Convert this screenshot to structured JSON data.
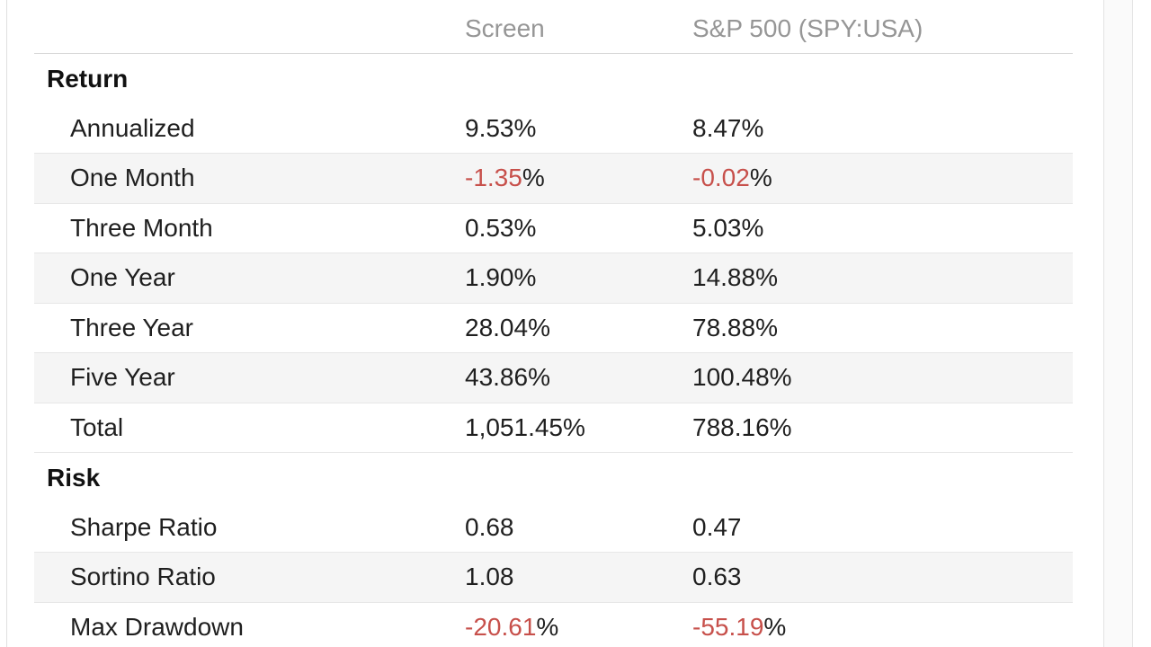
{
  "colors": {
    "negative_value": "#c7504b",
    "column_header_text": "#969696",
    "body_text": "#1f1f1f",
    "row_stripe": "#f5f5f5"
  },
  "table": {
    "columns": [
      {
        "label": ""
      },
      {
        "label": "Screen"
      },
      {
        "label": "S&P 500 (SPY:USA)"
      }
    ],
    "sections": [
      {
        "title": "Return",
        "rows": [
          {
            "label": "Annualized",
            "screen": {
              "num": "9.53",
              "suffix": "%",
              "negative": false
            },
            "benchmark": {
              "num": "8.47",
              "suffix": "%",
              "negative": false
            }
          },
          {
            "label": "One Month",
            "screen": {
              "num": "-1.35",
              "suffix": "%",
              "negative": true
            },
            "benchmark": {
              "num": "-0.02",
              "suffix": "%",
              "negative": true
            }
          },
          {
            "label": "Three Month",
            "screen": {
              "num": "0.53",
              "suffix": "%",
              "negative": false
            },
            "benchmark": {
              "num": "5.03",
              "suffix": "%",
              "negative": false
            }
          },
          {
            "label": "One Year",
            "screen": {
              "num": "1.90",
              "suffix": "%",
              "negative": false
            },
            "benchmark": {
              "num": "14.88",
              "suffix": "%",
              "negative": false
            }
          },
          {
            "label": "Three Year",
            "screen": {
              "num": "28.04",
              "suffix": "%",
              "negative": false
            },
            "benchmark": {
              "num": "78.88",
              "suffix": "%",
              "negative": false
            }
          },
          {
            "label": "Five Year",
            "screen": {
              "num": "43.86",
              "suffix": "%",
              "negative": false
            },
            "benchmark": {
              "num": "100.48",
              "suffix": "%",
              "negative": false
            }
          },
          {
            "label": "Total",
            "screen": {
              "num": "1,051.45",
              "suffix": "%",
              "negative": false
            },
            "benchmark": {
              "num": "788.16",
              "suffix": "%",
              "negative": false
            }
          }
        ]
      },
      {
        "title": "Risk",
        "rows": [
          {
            "label": "Sharpe Ratio",
            "screen": {
              "num": "0.68",
              "suffix": "",
              "negative": false
            },
            "benchmark": {
              "num": "0.47",
              "suffix": "",
              "negative": false
            }
          },
          {
            "label": "Sortino Ratio",
            "screen": {
              "num": "1.08",
              "suffix": "",
              "negative": false
            },
            "benchmark": {
              "num": "0.63",
              "suffix": "",
              "negative": false
            }
          },
          {
            "label": "Max Drawdown",
            "screen": {
              "num": "-20.61",
              "suffix": "%",
              "negative": true
            },
            "benchmark": {
              "num": "-55.19",
              "suffix": "%",
              "negative": true
            }
          }
        ]
      }
    ]
  }
}
